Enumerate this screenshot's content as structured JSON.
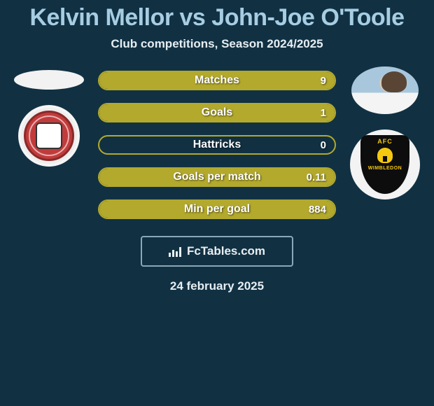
{
  "title": "Kelvin Mellor vs John-Joe O'Toole",
  "subtitle": "Club competitions, Season 2024/2025",
  "date": "24 february 2025",
  "brand": "FcTables.com",
  "colors": {
    "page_bg": "#113143",
    "title_color": "#a7cde3",
    "text_color": "#e6eef2",
    "bar_border": "#b3a92d",
    "bar_fill": "#b3a92d",
    "brand_border": "#8aa8b7"
  },
  "left": {
    "player": "Kelvin Mellor",
    "club": "Accrington Stanley"
  },
  "right": {
    "player": "John-Joe O'Toole",
    "club": "AFC Wimbledon"
  },
  "stats": [
    {
      "label": "Matches",
      "value": "9",
      "fill_pct": 100
    },
    {
      "label": "Goals",
      "value": "1",
      "fill_pct": 100
    },
    {
      "label": "Hattricks",
      "value": "0",
      "fill_pct": 0
    },
    {
      "label": "Goals per match",
      "value": "0.11",
      "fill_pct": 100
    },
    {
      "label": "Min per goal",
      "value": "884",
      "fill_pct": 100
    }
  ]
}
